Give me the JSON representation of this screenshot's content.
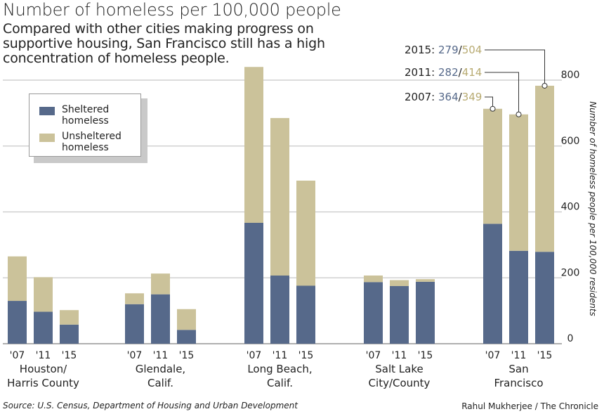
{
  "title": "Number of homeless per 100,000 people",
  "subtitle": "Compared with other cities making progress on supportive housing, San Francisco still has a high concentration of homeless people.",
  "source": "Source: U.S. Census, Department of Housing and Urban Development",
  "credit": "Rahul Mukherjee / The Chronicle",
  "colors": {
    "sheltered": "#56698a",
    "unsheltered": "#cbc29a",
    "grid": "#c8c8c8"
  },
  "legend": {
    "sheltered": "Sheltered homeless",
    "unsheltered": "Unsheltered homeless"
  },
  "annotations": [
    {
      "year": "2015:",
      "sheltered": "279",
      "sep": "/",
      "unsheltered": "504"
    },
    {
      "year": "2011:",
      "sheltered": "282",
      "sep": "/",
      "unsheltered": "414"
    },
    {
      "year": "2007:",
      "sheltered": "364",
      "sep": "/",
      "unsheltered": "349"
    }
  ],
  "chart_data": {
    "type": "bar",
    "stacked": true,
    "ylabel": "Number of homeless people per 100,000 residents",
    "ylim": [
      0,
      800
    ],
    "yticks": [
      0,
      200,
      400,
      600,
      800
    ],
    "grid": true,
    "legend_position": "top-left",
    "groups": [
      {
        "name": "Houston/ Harris County",
        "lines": [
          "Houston/",
          "Harris County"
        ],
        "years": [
          "'07",
          "'11",
          "'15"
        ],
        "sheltered": [
          130,
          97,
          58
        ],
        "unsheltered": [
          135,
          105,
          44
        ]
      },
      {
        "name": "Glendale, Calif.",
        "lines": [
          "Glendale,",
          "Calif."
        ],
        "years": [
          "'07",
          "'11",
          "'15"
        ],
        "sheltered": [
          120,
          150,
          42
        ],
        "unsheltered": [
          33,
          63,
          63
        ]
      },
      {
        "name": "Long Beach, Calif.",
        "lines": [
          "Long Beach,",
          "Calif."
        ],
        "years": [
          "'07",
          "'11",
          "'15"
        ],
        "sheltered": [
          367,
          207,
          176
        ],
        "unsheltered": [
          473,
          478,
          319
        ]
      },
      {
        "name": "Salt Lake City/County",
        "lines": [
          "Salt Lake",
          "City/County"
        ],
        "years": [
          "'07",
          "'11",
          "'15"
        ],
        "sheltered": [
          187,
          175,
          188
        ],
        "unsheltered": [
          20,
          18,
          8
        ]
      },
      {
        "name": "San Francisco",
        "lines": [
          "San",
          "Francisco"
        ],
        "years": [
          "'07",
          "'11",
          "'15"
        ],
        "sheltered": [
          364,
          282,
          279
        ],
        "unsheltered": [
          349,
          414,
          504
        ]
      }
    ]
  }
}
